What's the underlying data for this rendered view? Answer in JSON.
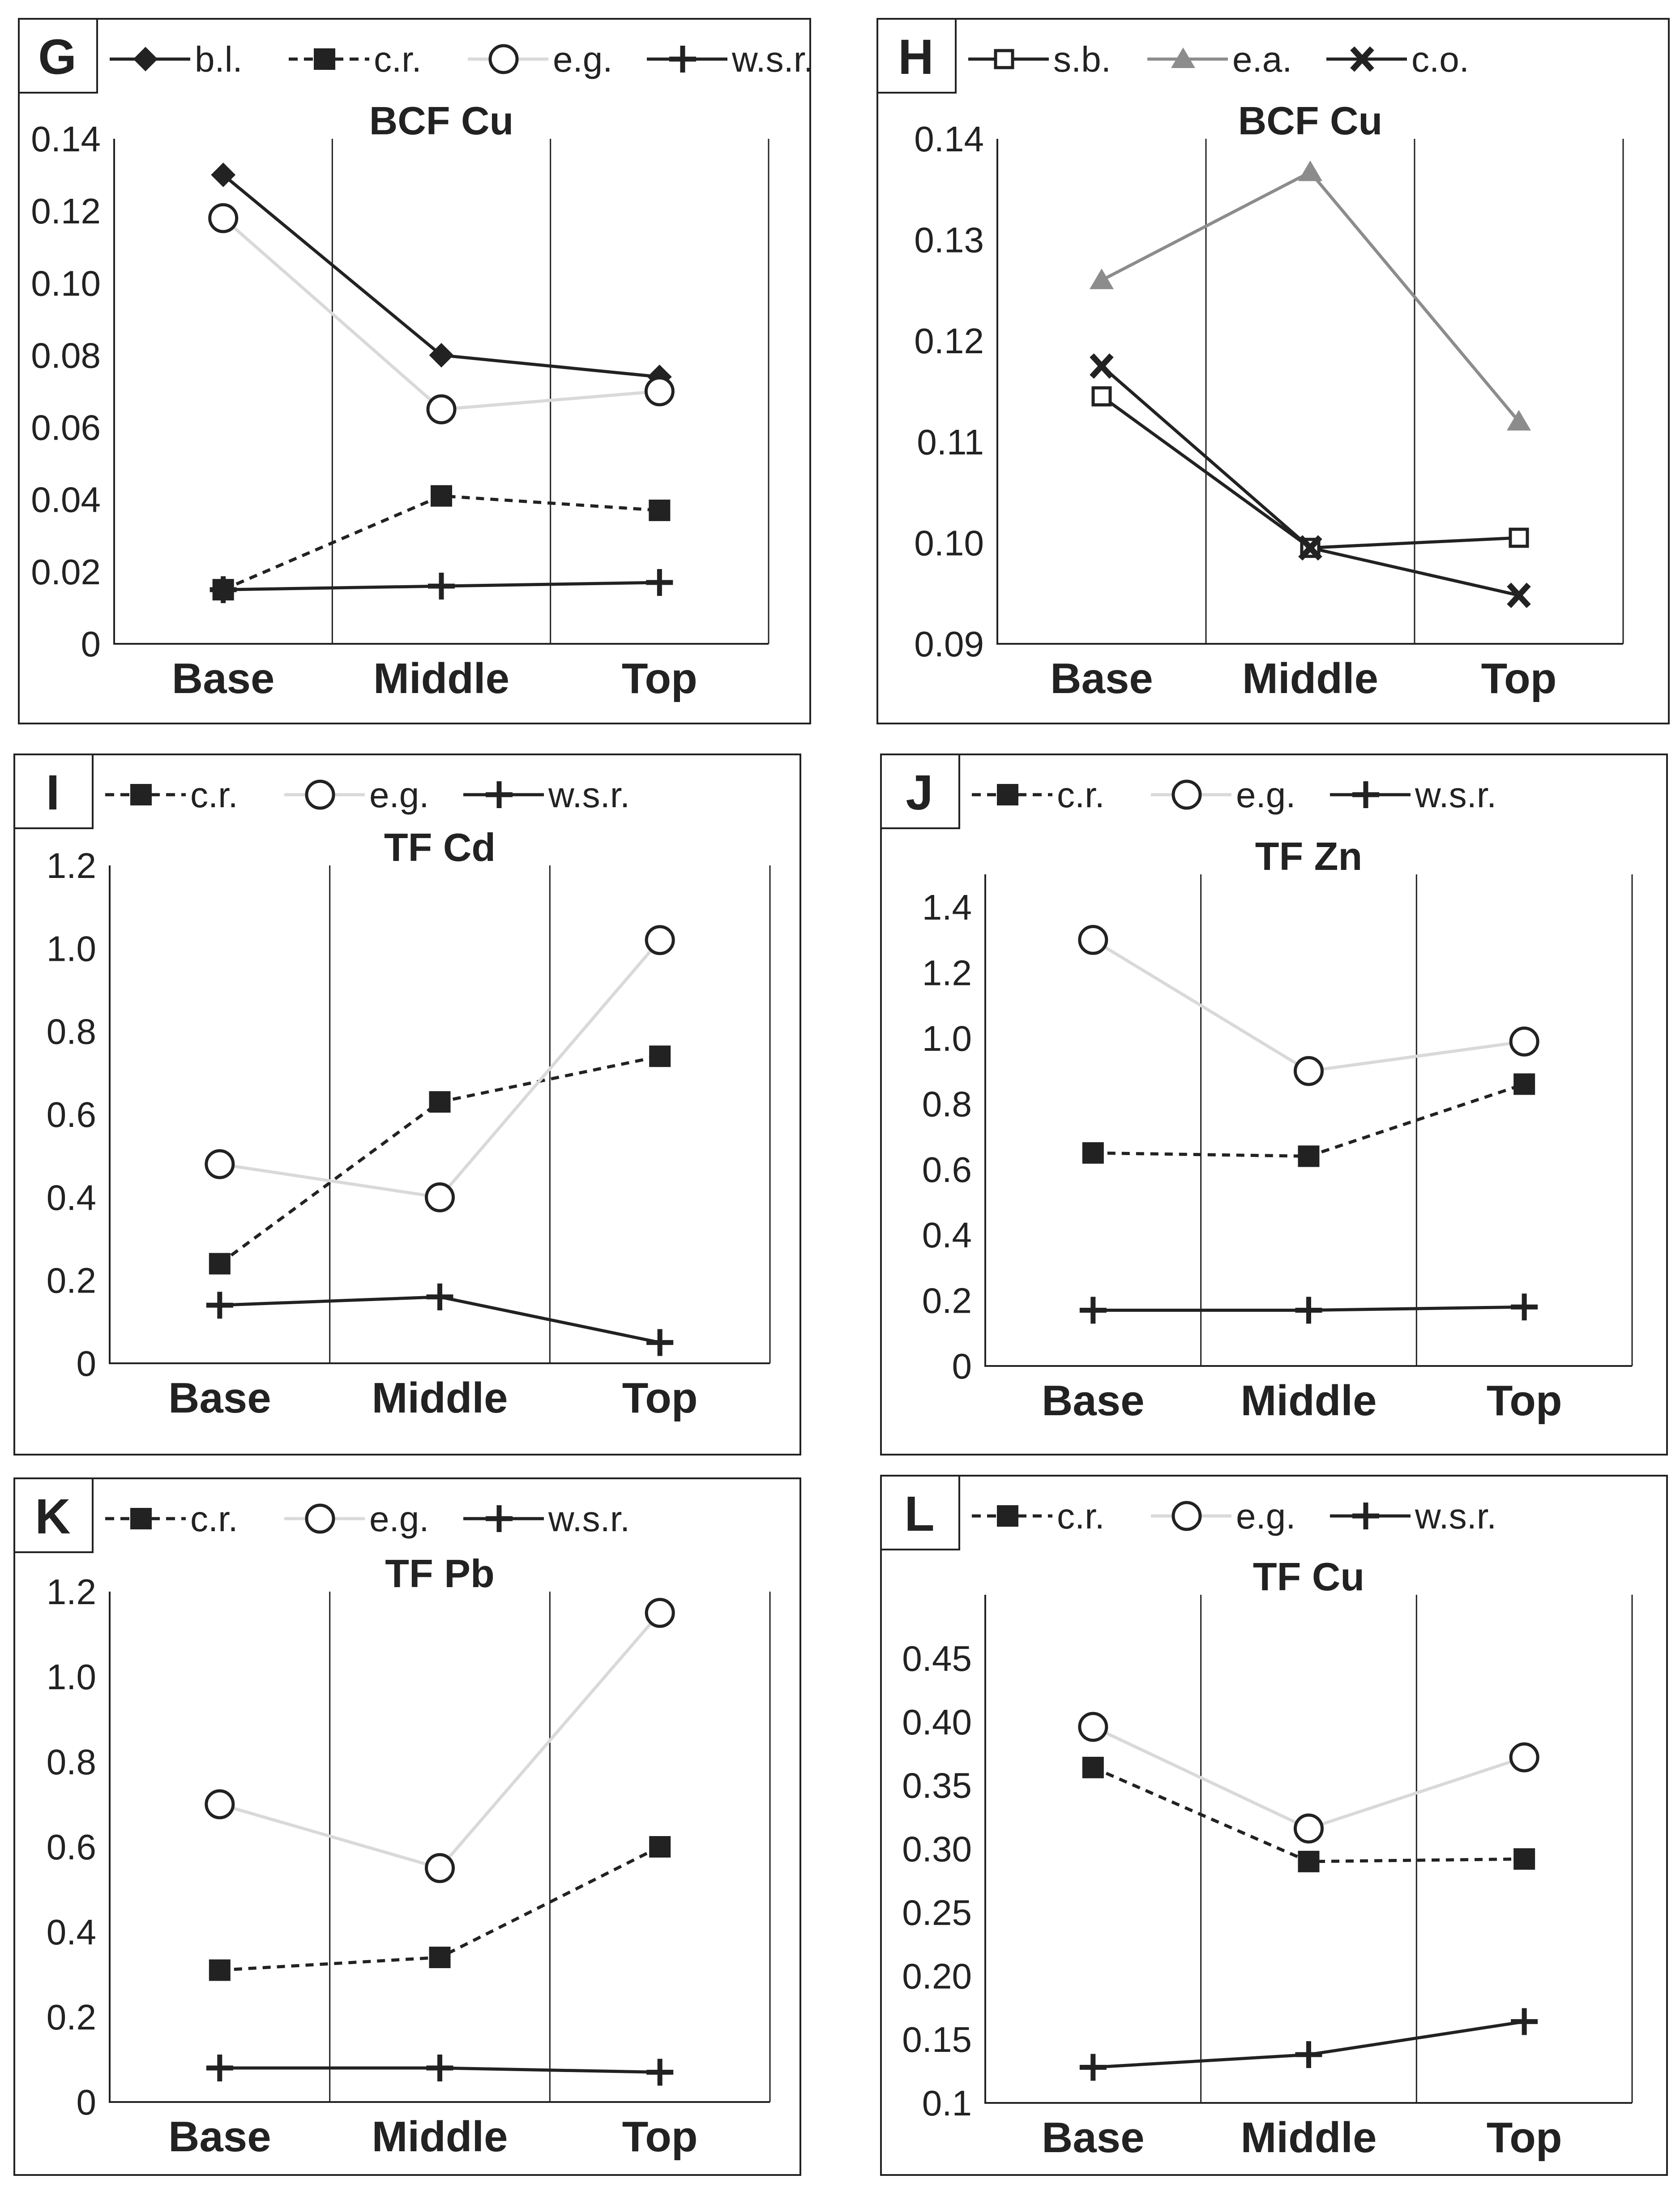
{
  "colors": {
    "dark": "#222222",
    "light": "#d9d9d9",
    "mid": "#8c8c8c",
    "grid": "#222222",
    "frame": "#222222"
  },
  "legend_names": {
    "b.l.": "b.l.",
    "c.r.": "c.r.",
    "e.g.": "e.g.",
    "w.s.r.": "w.s.r.",
    "s.b.": "s.b.",
    "e.a.": "e.a.",
    "c.o.": "c.o."
  },
  "chart_data": [
    {
      "panel_label": "G",
      "type": "line",
      "title": "BCF Cu",
      "categories": [
        "Base",
        "Middle",
        "Top"
      ],
      "ylim": [
        0,
        0.14
      ],
      "yticks": [
        "0",
        "0.02",
        "0.04",
        "0.06",
        "0.08",
        "0.10",
        "0.12",
        "0.14"
      ],
      "ytick_values": [
        0,
        0.02,
        0.04,
        0.06,
        0.08,
        0.1,
        0.12,
        0.14
      ],
      "series": [
        {
          "name": "b.l.",
          "values": [
            0.13,
            0.08,
            0.074
          ],
          "marker": "diamond",
          "line": "solid",
          "color": "dark"
        },
        {
          "name": "c.r.",
          "values": [
            0.015,
            0.041,
            0.037
          ],
          "marker": "square",
          "line": "dashed",
          "color": "dark"
        },
        {
          "name": "e.g.",
          "values": [
            0.118,
            0.065,
            0.07
          ],
          "marker": "circle",
          "line": "solid",
          "color": "light"
        },
        {
          "name": "w.s.r.",
          "values": [
            0.015,
            0.016,
            0.017
          ],
          "marker": "plus",
          "line": "solid",
          "color": "dark"
        }
      ]
    },
    {
      "panel_label": "H",
      "type": "line",
      "title": "BCF Cu",
      "categories": [
        "Base",
        "Middle",
        "Top"
      ],
      "ylim": [
        0.09,
        0.14
      ],
      "yticks": [
        "0.09",
        "0.10",
        "0.11",
        "0.12",
        "0.13",
        "0.14"
      ],
      "ytick_values": [
        0.09,
        0.1,
        0.11,
        0.12,
        0.13,
        0.14
      ],
      "series": [
        {
          "name": "s.b.",
          "values": [
            0.1145,
            0.0995,
            0.1005
          ],
          "marker": "open-square",
          "line": "solid",
          "color": "dark"
        },
        {
          "name": "e.a.",
          "values": [
            0.126,
            0.1367,
            0.112
          ],
          "marker": "triangle",
          "line": "solid",
          "color": "mid"
        },
        {
          "name": "c.o.",
          "values": [
            0.1175,
            0.0995,
            0.0948
          ],
          "marker": "x",
          "line": "solid",
          "color": "dark"
        }
      ]
    },
    {
      "panel_label": "I",
      "type": "line",
      "title": "TF Cd",
      "categories": [
        "Base",
        "Middle",
        "Top"
      ],
      "ylim": [
        0,
        1.2
      ],
      "yticks": [
        "0",
        "0.2",
        "0.4",
        "0.6",
        "0.8",
        "1.0",
        "1.2"
      ],
      "ytick_values": [
        0,
        0.2,
        0.4,
        0.6,
        0.8,
        1.0,
        1.2
      ],
      "series": [
        {
          "name": "c.r.",
          "values": [
            0.24,
            0.63,
            0.74
          ],
          "marker": "square",
          "line": "dashed",
          "color": "dark"
        },
        {
          "name": "e.g.",
          "values": [
            0.48,
            0.4,
            1.02
          ],
          "marker": "circle",
          "line": "solid",
          "color": "light"
        },
        {
          "name": "w.s.r.",
          "values": [
            0.14,
            0.16,
            0.05
          ],
          "marker": "plus",
          "line": "solid",
          "color": "dark"
        }
      ]
    },
    {
      "panel_label": "J",
      "type": "line",
      "title": "TF Zn",
      "categories": [
        "Base",
        "Middle",
        "Top"
      ],
      "ylim": [
        0,
        1.5
      ],
      "yticks": [
        "0",
        "0.2",
        "0.4",
        "0.6",
        "0.8",
        "1.0",
        "1.2",
        "1.4"
      ],
      "ytick_values": [
        0,
        0.2,
        0.4,
        0.6,
        0.8,
        1.0,
        1.2,
        1.4
      ],
      "series": [
        {
          "name": "c.r.",
          "values": [
            0.65,
            0.64,
            0.86
          ],
          "marker": "square",
          "line": "dashed",
          "color": "dark"
        },
        {
          "name": "e.g.",
          "values": [
            1.3,
            0.9,
            0.99
          ],
          "marker": "circle",
          "line": "solid",
          "color": "light"
        },
        {
          "name": "w.s.r.",
          "values": [
            0.17,
            0.17,
            0.18
          ],
          "marker": "plus",
          "line": "solid",
          "color": "dark"
        }
      ]
    },
    {
      "panel_label": "K",
      "type": "line",
      "title": "TF Pb",
      "categories": [
        "Base",
        "Middle",
        "Top"
      ],
      "ylim": [
        0,
        1.2
      ],
      "yticks": [
        "0",
        "0.2",
        "0.4",
        "0.6",
        "0.8",
        "1.0",
        "1.2"
      ],
      "ytick_values": [
        0,
        0.2,
        0.4,
        0.6,
        0.8,
        1.0,
        1.2
      ],
      "series": [
        {
          "name": "c.r.",
          "values": [
            0.31,
            0.34,
            0.6
          ],
          "marker": "square",
          "line": "dashed",
          "color": "dark"
        },
        {
          "name": "e.g.",
          "values": [
            0.7,
            0.55,
            1.15
          ],
          "marker": "circle",
          "line": "solid",
          "color": "light"
        },
        {
          "name": "w.s.r.",
          "values": [
            0.08,
            0.08,
            0.07
          ],
          "marker": "plus",
          "line": "solid",
          "color": "dark"
        }
      ]
    },
    {
      "panel_label": "L",
      "type": "line",
      "title": "TF Cu",
      "categories": [
        "Base",
        "Middle",
        "Top"
      ],
      "ylim": [
        0.1,
        0.5
      ],
      "yticks": [
        "0.1",
        "0.15",
        "0.20",
        "0.25",
        "0.30",
        "0.35",
        "0.40",
        "0.45"
      ],
      "ytick_values": [
        0.1,
        0.15,
        0.2,
        0.25,
        0.3,
        0.35,
        0.4,
        0.45
      ],
      "series": [
        {
          "name": "c.r.",
          "values": [
            0.364,
            0.29,
            0.292
          ],
          "marker": "square",
          "line": "dashed",
          "color": "dark"
        },
        {
          "name": "e.g.",
          "values": [
            0.396,
            0.316,
            0.372
          ],
          "marker": "circle",
          "line": "solid",
          "color": "light"
        },
        {
          "name": "w.s.r.",
          "values": [
            0.128,
            0.138,
            0.164
          ],
          "marker": "plus",
          "line": "solid",
          "color": "dark"
        }
      ]
    }
  ]
}
